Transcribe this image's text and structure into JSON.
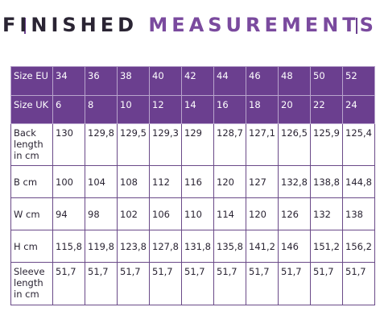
{
  "title": {
    "word1": "FINISHED",
    "word2": "MEASUREMENTS"
  },
  "rows": [
    {
      "label": "Size EU",
      "values": [
        "34",
        "36",
        "38",
        "40",
        "42",
        "44",
        "46",
        "48",
        "50",
        "52"
      ]
    },
    {
      "label": "Size UK",
      "values": [
        "6",
        "8",
        "10",
        "12",
        "14",
        "16",
        "18",
        "20",
        "22",
        "24"
      ]
    },
    {
      "label": "Back length in cm",
      "values": [
        "130",
        "129,8",
        "129,5",
        "129,3",
        "129",
        "128,7",
        "127,1",
        "126,5",
        "125,9",
        "125,4"
      ]
    },
    {
      "label": "B cm",
      "values": [
        "100",
        "104",
        "108",
        "112",
        "116",
        "120",
        "127",
        "132,8",
        "138,8",
        "144,8"
      ]
    },
    {
      "label": "W cm",
      "values": [
        "94",
        "98",
        "102",
        "106",
        "110",
        "114",
        "120",
        "126",
        "132",
        "138"
      ]
    },
    {
      "label": "H cm",
      "values": [
        "115,8",
        "119,8",
        "123,8",
        "127,8",
        "131,8",
        "135,8",
        "141,2",
        "146",
        "151,2",
        "156,2"
      ]
    },
    {
      "label": "Sleeve length in cm",
      "values": [
        "51,7",
        "51,7",
        "51,7",
        "51,7",
        "51,7",
        "51,7",
        "51,7",
        "51,7",
        "51,7",
        "51,7"
      ]
    }
  ]
}
